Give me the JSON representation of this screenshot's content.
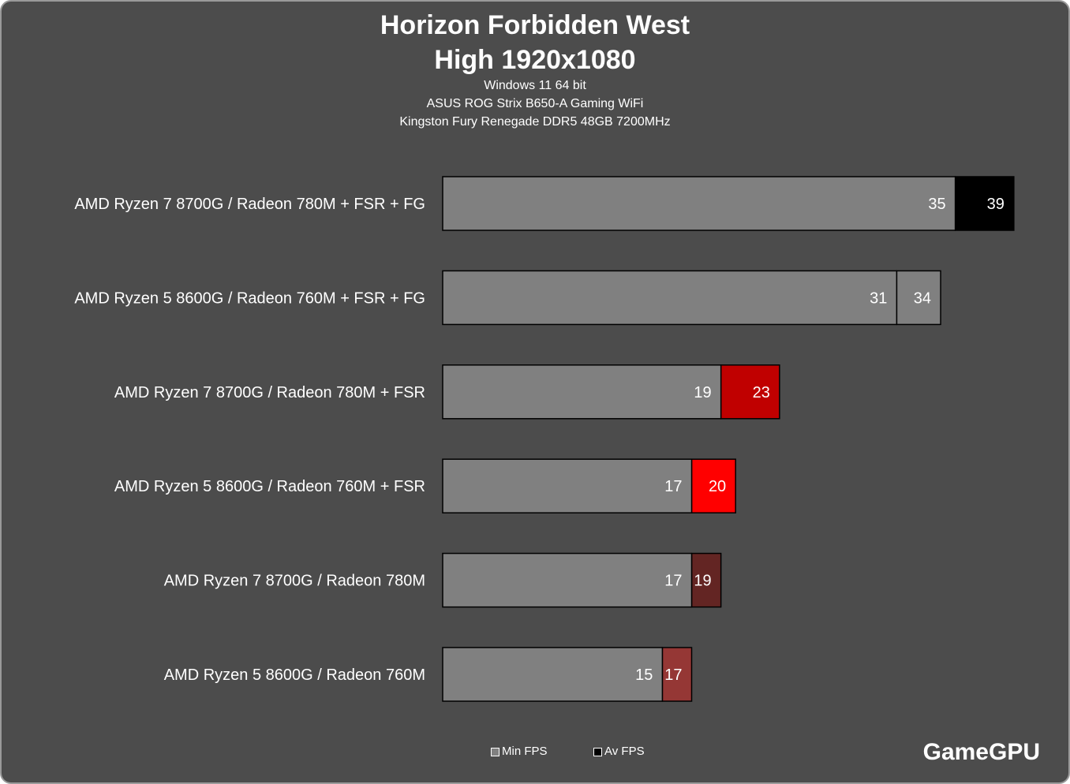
{
  "chart_data": {
    "type": "bar",
    "orientation": "horizontal",
    "title": "Horizon Forbidden West",
    "subtitle": "High 1920x1080",
    "notes": [
      "Windows 11  64 bit",
      "ASUS ROG Strix B650-A Gaming WiFi",
      "Kingston Fury Renegade DDR5 48GB 7200MHz"
    ],
    "categories": [
      "AMD Ryzen 7 8700G / Radeon 780M + FSR + FG",
      "AMD Ryzen 5 8600G / Radeon 760M + FSR + FG",
      "AMD Ryzen 7 8700G / Radeon 780M + FSR",
      "AMD Ryzen 5 8600G / Radeon 760M + FSR",
      "AMD Ryzen 7 8700G / Radeon 780M",
      "AMD Ryzen 5 8600G / Radeon 760M"
    ],
    "series": [
      {
        "name": "Min FPS",
        "values": [
          35,
          31,
          19,
          17,
          17,
          15
        ],
        "color": "#808080"
      },
      {
        "name": "Av FPS",
        "values": [
          39,
          34,
          23,
          20,
          19,
          17
        ],
        "colors": [
          "#000000",
          "#808080",
          "#c00000",
          "#ff0000",
          "#632523",
          "#953735"
        ]
      }
    ],
    "legend": {
      "position": "bottom",
      "items": [
        {
          "label": "Min FPS",
          "color": "#808080"
        },
        {
          "label": "Av FPS",
          "color": "#000000"
        }
      ]
    },
    "grid": false,
    "xlim": [
      0,
      39
    ]
  },
  "brand": "GameGPU"
}
